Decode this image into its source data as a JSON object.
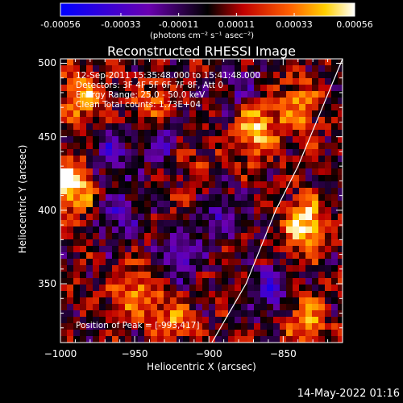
{
  "chart_data": {
    "type": "heatmap",
    "title": "Reconstructed RHESSI Image",
    "xlabel": "Heliocentric X (arcsec)",
    "ylabel": "Heliocentric Y (arcsec)",
    "xlim": [
      -1000,
      -810
    ],
    "ylim": [
      310,
      503
    ],
    "x_ticks": [
      -1000,
      -950,
      -900,
      -850
    ],
    "y_ticks": [
      350,
      400,
      450,
      500
    ],
    "colorbar": {
      "ticks": [
        "-0.00056",
        "-0.00033",
        "-0.00011",
        "0.00011",
        "0.00033",
        "0.00056"
      ],
      "range": [
        -0.00056,
        0.00056
      ],
      "units_label": "(photons cm⁻² s⁻¹ asec⁻²)",
      "colormap": [
        "#0000ff",
        "#6a00b0",
        "#000000",
        "#c00000",
        "#ff6000",
        "#ffd000",
        "#ffffff"
      ]
    },
    "peak": [
      -993,
      417
    ],
    "bright_regions": [
      {
        "x": -993,
        "y": 417,
        "level": 1.0
      },
      {
        "x": -985,
        "y": 478,
        "level": 0.65
      },
      {
        "x": -835,
        "y": 390,
        "level": 0.9
      },
      {
        "x": -868,
        "y": 455,
        "level": 0.8
      },
      {
        "x": -840,
        "y": 470,
        "level": 0.6
      },
      {
        "x": -935,
        "y": 470,
        "level": 0.5
      },
      {
        "x": -920,
        "y": 440,
        "level": 0.45
      },
      {
        "x": -950,
        "y": 345,
        "level": 0.55
      },
      {
        "x": -925,
        "y": 325,
        "level": 0.5
      },
      {
        "x": -835,
        "y": 325,
        "level": 0.55
      },
      {
        "x": -900,
        "y": 410,
        "level": 0.4
      }
    ],
    "dim_regions": [
      {
        "x": -928,
        "y": 448,
        "level": -0.85
      },
      {
        "x": -895,
        "y": 400,
        "level": -0.7
      },
      {
        "x": -960,
        "y": 395,
        "level": -0.5
      },
      {
        "x": -965,
        "y": 440,
        "level": -0.5
      },
      {
        "x": -858,
        "y": 345,
        "level": -0.55
      },
      {
        "x": -918,
        "y": 370,
        "level": -0.45
      },
      {
        "x": -880,
        "y": 485,
        "level": -0.4
      }
    ],
    "limb_line": [
      [
        -898,
        310
      ],
      [
        -875,
        350
      ],
      [
        -855,
        400
      ],
      [
        -840,
        430
      ],
      [
        -810,
        503
      ]
    ]
  },
  "info": {
    "time_range": "12-Sep-2011 15:35:48.000 to 15:41:48.000",
    "detectors": "Detectors: 3F 4F 5F 6F 7F 8F, Att 0",
    "energy": "Energy Range: 25.0 - 50.0 keV",
    "clean": "Clean     Total counts: 1.73E+04",
    "peak_label": "Position of Peak = [-993,417]"
  },
  "timestamp": "14-May-2022 01:16"
}
